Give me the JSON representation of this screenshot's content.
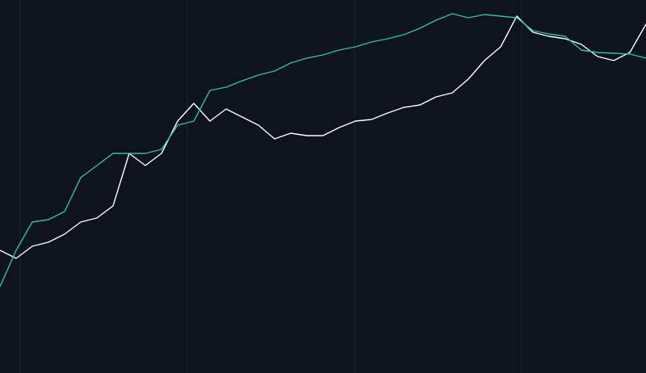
{
  "chart_data": {
    "type": "line",
    "x": [
      0,
      20,
      40,
      60,
      80,
      100,
      120,
      140,
      160,
      180,
      200,
      220,
      240,
      260,
      280,
      300,
      320,
      340,
      360,
      380,
      400,
      420,
      440,
      460,
      480,
      500,
      520,
      540,
      560,
      580,
      600,
      620,
      640,
      660,
      680,
      700,
      720,
      740,
      760,
      780,
      800
    ],
    "xlim": [
      0,
      800
    ],
    "ylim": [
      0,
      462
    ],
    "xticks": [
      25,
      232,
      439,
      646
    ],
    "grid": true,
    "background": "#0e131d",
    "series": [
      {
        "color": "#ffffff",
        "values": [
          152,
          142,
          157,
          162,
          172,
          187,
          192,
          207,
          272,
          257,
          272,
          312,
          334,
          312,
          327,
          317,
          307,
          290,
          297,
          294,
          294,
          304,
          312,
          314,
          322,
          329,
          332,
          342,
          347,
          364,
          387,
          404,
          442,
          422,
          417,
          414,
          407,
          392,
          387,
          397,
          432
        ]
      },
      {
        "color": "#2bc59b",
        "values": [
          107,
          152,
          187,
          190,
          200,
          242,
          257,
          272,
          272,
          272,
          277,
          307,
          312,
          350,
          354,
          362,
          369,
          374,
          384,
          390,
          394,
          400,
          404,
          410,
          414,
          419,
          427,
          437,
          445,
          440,
          444,
          442,
          440,
          424,
          420,
          417,
          400,
          397,
          396,
          395,
          390
        ]
      }
    ]
  }
}
